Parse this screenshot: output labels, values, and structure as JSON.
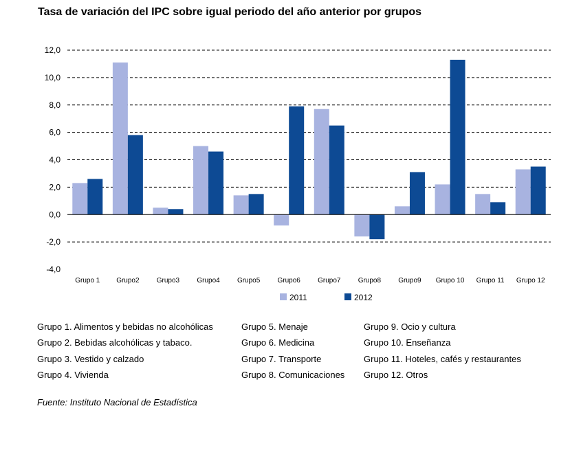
{
  "title": "Tasa de variación del IPC sobre igual periodo del año anterior por grupos",
  "colors": {
    "2011": "#a8b3e0",
    "2012": "#0d4a94"
  },
  "chart_data": {
    "type": "bar",
    "categories": [
      "Grupo 1",
      "Grupo2",
      "Grupo3",
      "Grupo4",
      "Grupo5",
      "Grupo6",
      "Grupo7",
      "Grupo8",
      "Grupo9",
      "Grupo 10",
      "Grupo 11",
      "Grupo 12"
    ],
    "series": [
      {
        "name": "2011",
        "values": [
          2.3,
          11.1,
          0.5,
          5.0,
          1.4,
          -0.8,
          7.7,
          -1.6,
          0.6,
          2.2,
          1.5,
          3.3
        ]
      },
      {
        "name": "2012",
        "values": [
          2.6,
          5.8,
          0.4,
          4.6,
          1.5,
          7.9,
          6.5,
          -1.8,
          3.1,
          11.3,
          0.9,
          3.5
        ]
      }
    ],
    "yticks": [
      "12,0",
      "10,0",
      "8,0",
      "6,0",
      "4,0",
      "2,0",
      "0,0",
      "-2,0",
      "-4,0"
    ],
    "ylim": [
      -4,
      12
    ],
    "grid": true,
    "legend": "bottom"
  },
  "group_legend": [
    [
      "Grupo 1. Alimentos y bebidas no alcohólicas",
      "Grupo 2. Bebidas alcohólicas y  tabaco.",
      "Grupo 3. Vestido y calzado",
      "Grupo 4. Vivienda"
    ],
    [
      "Grupo 5. Menaje",
      "Grupo 6. Medicina",
      "Grupo 7. Transporte",
      "Grupo 8. Comunicaciones"
    ],
    [
      "Grupo 9. Ocio y cultura",
      "Grupo 10. Enseñanza",
      "Grupo 11. Hoteles, cafés y restaurantes",
      "Grupo 12. Otros"
    ]
  ],
  "source": "Fuente: Instituto Nacional de Estadística"
}
